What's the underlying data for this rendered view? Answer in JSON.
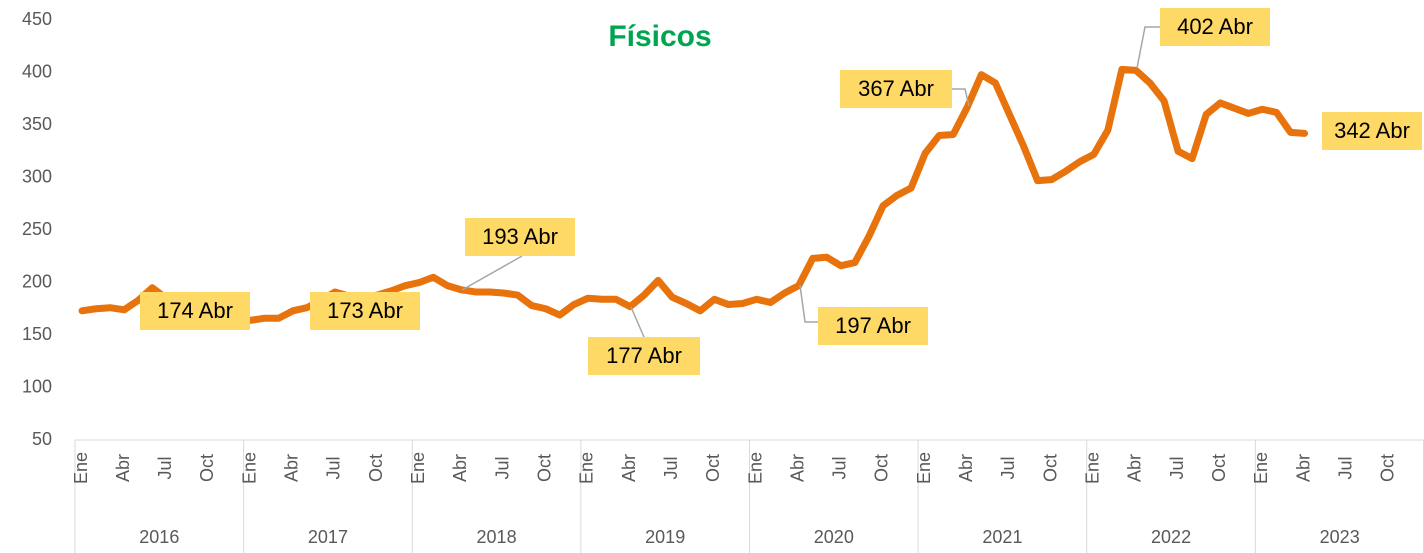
{
  "chart_data": {
    "type": "line",
    "title": "Físicos",
    "categories": [
      "Ene",
      null,
      null,
      "Abr",
      null,
      null,
      "Jul",
      null,
      null,
      "Oct",
      null,
      null,
      "Ene",
      null,
      null,
      "Abr",
      null,
      null,
      "Jul",
      null,
      null,
      "Oct",
      null,
      null,
      "Ene",
      null,
      null,
      "Abr",
      null,
      null,
      "Jul",
      null,
      null,
      "Oct",
      null,
      null,
      "Ene",
      null,
      null,
      "Abr",
      null,
      null,
      "Jul",
      null,
      null,
      "Oct",
      null,
      null,
      "Ene",
      null,
      null,
      "Abr",
      null,
      null,
      "Jul",
      null,
      null,
      "Oct",
      null,
      null,
      "Ene",
      null,
      null,
      "Abr",
      null,
      null,
      "Jul",
      null,
      null,
      "Oct",
      null,
      null,
      "Ene",
      null,
      null,
      "Abr",
      null,
      null,
      "Jul",
      null,
      null,
      "Oct",
      null,
      null,
      "Ene",
      null,
      null,
      "Abr",
      null,
      null,
      "Jul",
      null,
      null,
      "Oct",
      null,
      null
    ],
    "years": [
      "2016",
      "2017",
      "2018",
      "2019",
      "2020",
      "2021",
      "2022",
      "2023"
    ],
    "series": [
      {
        "name": "Físicos",
        "color": "#e8720c",
        "values": [
          173,
          175,
          176,
          174,
          183,
          195,
          185,
          178,
          172,
          170,
          168,
          168,
          164,
          166,
          166,
          173,
          176,
          183,
          191,
          187,
          185,
          188,
          192,
          197,
          200,
          205,
          197,
          193,
          191,
          191,
          190,
          188,
          178,
          175,
          169,
          179,
          185,
          184,
          184,
          177,
          188,
          202,
          186,
          180,
          173,
          184,
          179,
          180,
          184,
          181,
          190,
          197,
          223,
          224,
          216,
          219,
          244,
          273,
          283,
          290,
          323,
          340,
          341,
          367,
          398,
          390,
          360,
          330,
          297,
          298,
          306,
          315,
          322,
          345,
          403,
          402,
          390,
          373,
          325,
          318,
          360,
          371,
          366,
          361,
          365,
          362,
          343,
          342,
          null,
          null,
          null,
          null,
          null,
          null,
          null,
          null
        ]
      }
    ],
    "annotations": [
      "174 Abr",
      "173 Abr",
      "193 Abr",
      "177 Abr",
      "197 Abr",
      "367 Abr",
      "402 Abr",
      "342 Abr"
    ],
    "ylim": [
      50,
      450
    ],
    "yticks": [
      50,
      100,
      150,
      200,
      250,
      300,
      350,
      400,
      450
    ],
    "grid": false
  }
}
